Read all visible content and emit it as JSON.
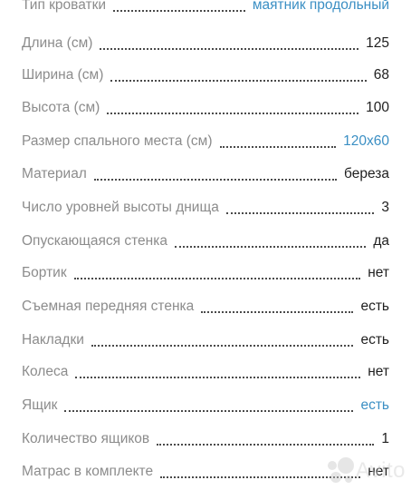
{
  "specs": [
    {
      "label": "Тип кроватки",
      "value": "маятник продольный",
      "value_color": "#3b8fc4"
    },
    {
      "label": "Длина (см)",
      "value": "125"
    },
    {
      "label": "Ширина (см)",
      "value": "68"
    },
    {
      "label": "Высота (см)",
      "value": "100"
    },
    {
      "label": "Размер спального места (см)",
      "value": "120x60",
      "value_color": "#3b8fc4"
    },
    {
      "label": "Материал",
      "value": "береза"
    },
    {
      "label": "Число уровней высоты днища",
      "value": "3"
    },
    {
      "label": "Опускающаяся стенка",
      "value": "да"
    },
    {
      "label": "Бортик",
      "value": "нет"
    },
    {
      "label": "Съемная передняя стенка",
      "value": "есть"
    },
    {
      "label": "Накладки",
      "value": "есть"
    },
    {
      "label": "Колеса",
      "value": "нет"
    },
    {
      "label": "Ящик",
      "value": "есть",
      "value_color": "#3b8fc4"
    },
    {
      "label": "Количество ящиков",
      "value": "1"
    },
    {
      "label": "Матрас в комплекте",
      "value": "нет"
    }
  ],
  "watermark": {
    "brand": "Avito",
    "icon": "avito-logo-dots"
  },
  "colors": {
    "label": "#8c8c8c",
    "value": "#1f1f1f",
    "link": "#3b8fc4",
    "dots": "#4a4a4a"
  }
}
